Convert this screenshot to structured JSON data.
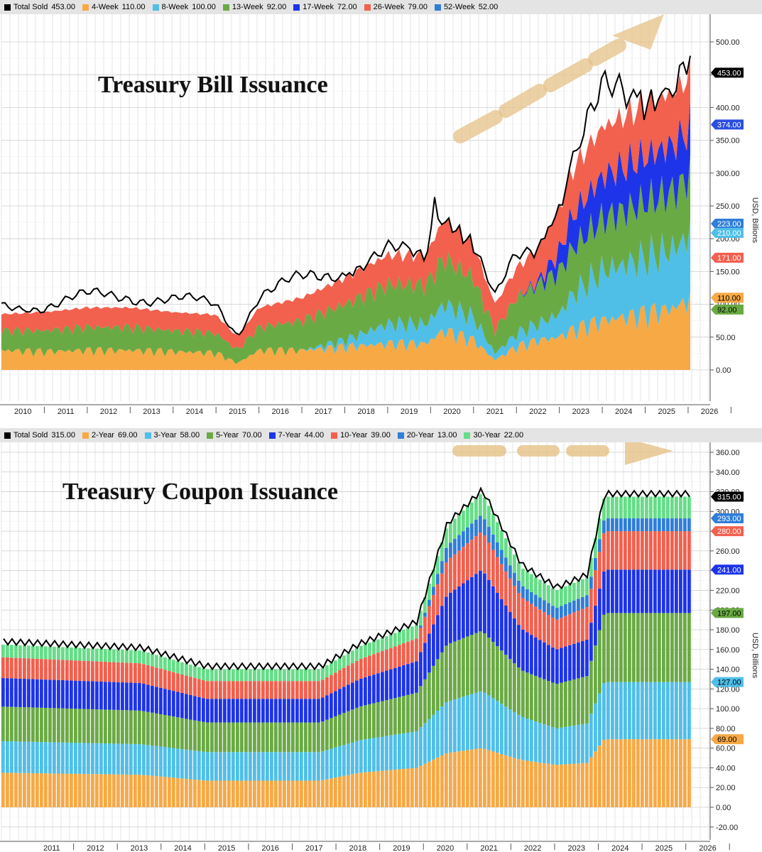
{
  "chart_data": [
    {
      "type": "area",
      "title": "Treasury Bill Issuance",
      "ylabel": "USD, Billions",
      "ylim": [
        -30,
        520
      ],
      "ytick_labels": [
        "0.00",
        "50.00",
        "100.00",
        "150.00",
        "200.00",
        "250.00",
        "300.00",
        "350.00",
        "400.00",
        "450.00",
        "500.00"
      ],
      "yticks": [
        0,
        50,
        100,
        150,
        200,
        250,
        300,
        350,
        400,
        450,
        500
      ],
      "x_labels": [
        "2010",
        "2011",
        "2012",
        "2013",
        "2014",
        "2015",
        "2016",
        "2017",
        "2018",
        "2019",
        "2020",
        "2021",
        "2022",
        "2023",
        "2024",
        "2025",
        "2026"
      ],
      "x_range": [
        2010.0,
        2026.15
      ],
      "legend": [
        {
          "name": "Total Sold",
          "value": "453.00",
          "color": "#000000"
        },
        {
          "name": "4-Week",
          "value": "110.00",
          "color": "#f7a945"
        },
        {
          "name": "8-Week",
          "value": "100.00",
          "color": "#4fbfe8"
        },
        {
          "name": "13-Week",
          "value": "92.00",
          "color": "#6aaa44"
        },
        {
          "name": "17-Week",
          "value": "72.00",
          "color": "#1e34e8"
        },
        {
          "name": "26-Week",
          "value": "79.00",
          "color": "#f2604e"
        },
        {
          "name": "52-Week",
          "value": "52.00",
          "color": "#2f7ed8"
        }
      ],
      "last_value_tags": [
        {
          "label": "453.00",
          "value": 453,
          "color": "#000000",
          "text_color": "#ffffff"
        },
        {
          "label": "374.00",
          "value": 374,
          "color": "#2b4ee0",
          "text_color": "#ffffff"
        },
        {
          "label": "223.00",
          "value": 223,
          "color": "#2f7ed8",
          "text_color": "#ffffff"
        },
        {
          "label": "210.00",
          "value": 210,
          "color": "#4fbfe8",
          "text_color": "#ffffff"
        },
        {
          "label": "171.00",
          "value": 171,
          "color": "#f2604e",
          "text_color": "#ffffff"
        },
        {
          "label": "110.00",
          "value": 110,
          "color": "#f7a945",
          "text_color": "#000000"
        },
        {
          "label": "92.00",
          "value": 92,
          "color": "#6aaa44",
          "text_color": "#000000"
        }
      ],
      "series": [
        {
          "name": "4-Week",
          "color": "#f7a945",
          "x": [
            2010,
            2011,
            2012,
            2013,
            2014,
            2015,
            2015.5,
            2016,
            2017,
            2018,
            2019,
            2019.9,
            2020.3,
            2021,
            2021.5,
            2022,
            2022.5,
            2023,
            2023.3,
            2024,
            2025,
            2025.7,
            2026.1
          ],
          "y": [
            30,
            28,
            30,
            30,
            28,
            26,
            10,
            30,
            30,
            35,
            40,
            40,
            60,
            45,
            15,
            35,
            45,
            50,
            60,
            75,
            85,
            95,
            110
          ]
        },
        {
          "name": "8-Week",
          "color": "#4fbfe8",
          "x": [
            2010,
            2011,
            2012,
            2013,
            2014,
            2015,
            2015.5,
            2016,
            2017,
            2018,
            2019,
            2019.9,
            2020.3,
            2021,
            2021.5,
            2022,
            2022.5,
            2023,
            2023.3,
            2024,
            2025,
            2025.7,
            2026.1
          ],
          "y": [
            0,
            0,
            0,
            0,
            0,
            0,
            0,
            0,
            0,
            10,
            30,
            30,
            40,
            35,
            10,
            20,
            25,
            35,
            55,
            75,
            85,
            90,
            100
          ]
        },
        {
          "name": "13-Week",
          "color": "#6aaa44",
          "x": [
            2010,
            2011,
            2012,
            2013,
            2014,
            2015,
            2015.5,
            2016,
            2017,
            2018,
            2019,
            2019.9,
            2020.3,
            2021,
            2021.5,
            2022,
            2022.5,
            2023,
            2023.3,
            2024,
            2025,
            2025.7,
            2026.1
          ],
          "y": [
            30,
            32,
            35,
            35,
            32,
            30,
            20,
            35,
            45,
            55,
            60,
            60,
            70,
            60,
            35,
            55,
            60,
            65,
            70,
            80,
            85,
            88,
            92
          ]
        },
        {
          "name": "17-Week",
          "color": "#1e34e8",
          "x": [
            2010,
            2011,
            2012,
            2013,
            2014,
            2015,
            2015.5,
            2016,
            2017,
            2018,
            2019,
            2019.9,
            2020.3,
            2021,
            2021.5,
            2022,
            2022.5,
            2023,
            2023.3,
            2024,
            2025,
            2025.7,
            2026.1
          ],
          "y": [
            0,
            0,
            0,
            0,
            0,
            0,
            0,
            0,
            0,
            0,
            0,
            0,
            0,
            0,
            0,
            0,
            5,
            30,
            50,
            65,
            70,
            72,
            72
          ]
        },
        {
          "name": "26-Week",
          "color": "#f2604e",
          "x": [
            2010,
            2011,
            2012,
            2013,
            2014,
            2015,
            2015.5,
            2016,
            2017,
            2018,
            2019,
            2019.9,
            2020.3,
            2021,
            2021.5,
            2022,
            2022.5,
            2023,
            2023.3,
            2024,
            2025,
            2025.7,
            2026.1
          ],
          "y": [
            25,
            28,
            30,
            30,
            28,
            28,
            20,
            30,
            35,
            40,
            45,
            45,
            60,
            50,
            40,
            45,
            50,
            65,
            70,
            75,
            78,
            79,
            79
          ]
        },
        {
          "name": "52-Week",
          "color": "#2f7ed8",
          "x": [
            2010,
            2026.1
          ],
          "y": [
            0,
            0
          ]
        }
      ],
      "total_sold": {
        "name": "Total Sold",
        "x": [
          2010,
          2011,
          2012,
          2013,
          2014,
          2015,
          2015.5,
          2016,
          2017,
          2018,
          2019,
          2019.9,
          2020.1,
          2020.3,
          2021,
          2021.5,
          2022,
          2022.5,
          2023,
          2023.3,
          2024,
          2025,
          2025.7,
          2026.1
        ],
        "y": [
          95,
          100,
          110,
          115,
          105,
          100,
          55,
          115,
          135,
          155,
          175,
          170,
          270,
          210,
          185,
          105,
          170,
          190,
          260,
          320,
          400,
          430,
          440,
          453
        ]
      },
      "annotation": "dashed upward arrow"
    },
    {
      "type": "bar",
      "title": "Treasury Coupon Issuance",
      "ylabel": "USD, Billions",
      "ylim": [
        -28,
        372
      ],
      "ytick_labels": [
        "-20.00",
        "0.00",
        "20.00",
        "40.00",
        "60.00",
        "80.00",
        "100.00",
        "120.00",
        "140.00",
        "160.00",
        "180.00",
        "200.00",
        "220.00",
        "240.00",
        "260.00",
        "280.00",
        "300.00",
        "320.00",
        "340.00",
        "360.00"
      ],
      "yticks": [
        -20,
        0,
        20,
        40,
        60,
        80,
        100,
        120,
        140,
        160,
        180,
        200,
        220,
        240,
        260,
        280,
        300,
        320,
        340,
        360
      ],
      "x_labels": [
        "2011",
        "2012",
        "2013",
        "2014",
        "2015",
        "2016",
        "2017",
        "2018",
        "2019",
        "2020",
        "2021",
        "2022",
        "2023",
        "2024",
        "2025",
        "2026"
      ],
      "x_range": [
        2010.35,
        2026.2
      ],
      "legend": [
        {
          "name": "Total Sold",
          "value": "315.00",
          "color": "#000000"
        },
        {
          "name": "2-Year",
          "value": "69.00",
          "color": "#f7a945"
        },
        {
          "name": "3-Year",
          "value": "58.00",
          "color": "#4fbfe8"
        },
        {
          "name": "5-Year",
          "value": "70.00",
          "color": "#6aaa44"
        },
        {
          "name": "7-Year",
          "value": "44.00",
          "color": "#1e34e8"
        },
        {
          "name": "10-Year",
          "value": "39.00",
          "color": "#f2604e"
        },
        {
          "name": "20-Year",
          "value": "13.00",
          "color": "#2f7ed8"
        },
        {
          "name": "30-Year",
          "value": "22.00",
          "color": "#66dd88"
        }
      ],
      "last_value_tags": [
        {
          "label": "315.00",
          "value": 315,
          "color": "#000000",
          "text_color": "#ffffff"
        },
        {
          "label": "293.00",
          "value": 293,
          "color": "#2f7ed8",
          "text_color": "#ffffff"
        },
        {
          "label": "280.00",
          "value": 280,
          "color": "#f2604e",
          "text_color": "#ffffff"
        },
        {
          "label": "241.00",
          "value": 241,
          "color": "#1e34e8",
          "text_color": "#ffffff"
        },
        {
          "label": "197.00",
          "value": 197,
          "color": "#6aaa44",
          "text_color": "#000000"
        },
        {
          "label": "127.00",
          "value": 127,
          "color": "#4fbfe8",
          "text_color": "#000000"
        },
        {
          "label": "69.00",
          "value": 69,
          "color": "#f7a945",
          "text_color": "#000000"
        }
      ],
      "series": [
        {
          "name": "2-Year",
          "color": "#f7a945",
          "x": [
            2010.4,
            2013.5,
            2015.0,
            2017.6,
            2018.5,
            2019.8,
            2020.5,
            2021.3,
            2022.2,
            2023.0,
            2023.7,
            2024.1,
            2026.1
          ],
          "y": [
            35,
            33,
            27,
            27,
            35,
            40,
            55,
            60,
            48,
            43,
            45,
            69,
            69
          ]
        },
        {
          "name": "3-Year",
          "color": "#4fbfe8",
          "x": [
            2010.4,
            2013.5,
            2015.0,
            2017.6,
            2018.5,
            2019.8,
            2020.5,
            2021.3,
            2022.2,
            2023.0,
            2023.7,
            2024.1,
            2026.1
          ],
          "y": [
            32,
            31,
            29,
            29,
            33,
            37,
            52,
            58,
            44,
            37,
            40,
            58,
            58
          ]
        },
        {
          "name": "5-Year",
          "color": "#6aaa44",
          "x": [
            2010.4,
            2013.5,
            2015.0,
            2017.6,
            2018.5,
            2019.8,
            2020.5,
            2021.3,
            2022.2,
            2023.0,
            2023.7,
            2024.1,
            2026.1
          ],
          "y": [
            35,
            34,
            30,
            30,
            34,
            39,
            58,
            61,
            47,
            45,
            48,
            70,
            70
          ]
        },
        {
          "name": "7-Year",
          "color": "#1e34e8",
          "x": [
            2010.4,
            2013.5,
            2015.0,
            2017.6,
            2018.5,
            2019.8,
            2020.5,
            2021.3,
            2022.2,
            2023.0,
            2023.7,
            2024.1,
            2026.1
          ],
          "y": [
            29,
            28,
            24,
            24,
            28,
            32,
            50,
            62,
            42,
            35,
            37,
            44,
            44
          ]
        },
        {
          "name": "10-Year",
          "color": "#f2604e",
          "x": [
            2010.4,
            2013.5,
            2015.0,
            2017.6,
            2018.5,
            2019.8,
            2020.5,
            2021.3,
            2022.2,
            2023.0,
            2023.7,
            2024.1,
            2026.1
          ],
          "y": [
            21,
            20,
            18,
            18,
            20,
            23,
            35,
            39,
            32,
            30,
            33,
            39,
            39
          ]
        },
        {
          "name": "20-Year",
          "color": "#2f7ed8",
          "x": [
            2010.4,
            2013.5,
            2015.0,
            2017.6,
            2018.5,
            2019.8,
            2020.5,
            2021.3,
            2022.2,
            2023.0,
            2023.7,
            2024.1,
            2026.1
          ],
          "y": [
            0,
            0,
            0,
            0,
            0,
            0,
            15,
            17,
            12,
            12,
            12,
            13,
            13
          ]
        },
        {
          "name": "30-Year",
          "color": "#66dd88",
          "x": [
            2010.4,
            2013.5,
            2015.0,
            2017.6,
            2018.5,
            2019.8,
            2020.5,
            2021.3,
            2022.2,
            2023.0,
            2023.7,
            2024.1,
            2026.1
          ],
          "y": [
            13,
            13,
            12,
            12,
            13,
            14,
            20,
            22,
            18,
            18,
            18,
            22,
            22
          ]
        }
      ],
      "annotation": "dashed rightward arrow"
    }
  ]
}
